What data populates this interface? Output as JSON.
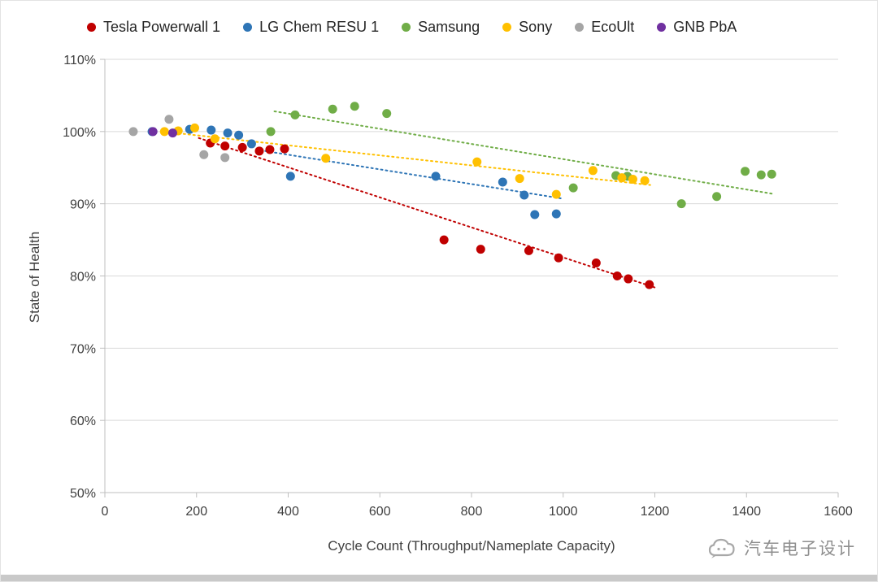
{
  "watermark": {
    "text": "汽车电子设计"
  },
  "chart_data": {
    "type": "scatter",
    "title": "",
    "xlabel": "Cycle Count (Throughput/Nameplate  Capacity)",
    "ylabel": "State of Health",
    "xlim": [
      0,
      1600
    ],
    "ylim": [
      50,
      110
    ],
    "x_ticks": [
      0,
      200,
      400,
      600,
      800,
      1000,
      1200,
      1400,
      1600
    ],
    "y_ticks": [
      50,
      60,
      70,
      80,
      90,
      100,
      110
    ],
    "y_tick_suffix": "%",
    "grid": true,
    "legend_position": "top",
    "colors": {
      "grid": "#d9d9d9",
      "axis": "#bfbfbf",
      "text": "#404040"
    },
    "series": [
      {
        "name": "Tesla Powerwall 1",
        "color": "#C00000",
        "points": [
          [
            230,
            98.4
          ],
          [
            262,
            98.0
          ],
          [
            300,
            97.8
          ],
          [
            337,
            97.3
          ],
          [
            360,
            97.5
          ],
          [
            392,
            97.6
          ],
          [
            740,
            85.0
          ],
          [
            820,
            83.7
          ],
          [
            925,
            83.5
          ],
          [
            990,
            82.5
          ],
          [
            1072,
            81.8
          ],
          [
            1118,
            80.0
          ],
          [
            1142,
            79.6
          ],
          [
            1188,
            78.8
          ]
        ],
        "trend": [
          205,
          99.1,
          1205,
          78.3
        ]
      },
      {
        "name": "LG Chem RESU 1",
        "color": "#2E75B6",
        "points": [
          [
            103,
            100.0
          ],
          [
            185,
            100.3
          ],
          [
            232,
            100.2
          ],
          [
            268,
            99.8
          ],
          [
            292,
            99.5
          ],
          [
            320,
            98.3
          ],
          [
            405,
            93.8
          ],
          [
            722,
            93.8
          ],
          [
            868,
            93.0
          ],
          [
            915,
            91.2
          ],
          [
            938,
            88.5
          ],
          [
            985,
            88.6
          ]
        ],
        "trend": [
          350,
          97.3,
          1000,
          90.7
        ]
      },
      {
        "name": "Samsung",
        "color": "#70AD47",
        "points": [
          [
            362,
            100.0
          ],
          [
            415,
            102.3
          ],
          [
            497,
            103.1
          ],
          [
            545,
            103.5
          ],
          [
            615,
            102.5
          ],
          [
            1022,
            92.2
          ],
          [
            1115,
            93.9
          ],
          [
            1140,
            93.8
          ],
          [
            1258,
            90.0
          ],
          [
            1335,
            91.0
          ],
          [
            1397,
            94.5
          ],
          [
            1432,
            94.0
          ],
          [
            1455,
            94.1
          ]
        ],
        "trend": [
          370,
          102.8,
          1455,
          91.4
        ]
      },
      {
        "name": "Sony",
        "color": "#FFC000",
        "points": [
          [
            130,
            100.0
          ],
          [
            160,
            100.1
          ],
          [
            196,
            100.5
          ],
          [
            240,
            99.0
          ],
          [
            482,
            96.3
          ],
          [
            812,
            95.8
          ],
          [
            905,
            93.5
          ],
          [
            985,
            91.3
          ],
          [
            1065,
            94.6
          ],
          [
            1128,
            93.6
          ],
          [
            1152,
            93.4
          ],
          [
            1178,
            93.2
          ]
        ],
        "trend": [
          140,
          99.9,
          1190,
          92.6
        ]
      },
      {
        "name": "EcoUlt",
        "color": "#A5A5A5",
        "points": [
          [
            62,
            100.0
          ],
          [
            140,
            101.7
          ],
          [
            216,
            96.8
          ],
          [
            262,
            96.4
          ]
        ],
        "trend": null
      },
      {
        "name": "GNB PbA",
        "color": "#7030A0",
        "points": [
          [
            105,
            100.0
          ],
          [
            148,
            99.8
          ]
        ],
        "trend": null
      }
    ]
  }
}
